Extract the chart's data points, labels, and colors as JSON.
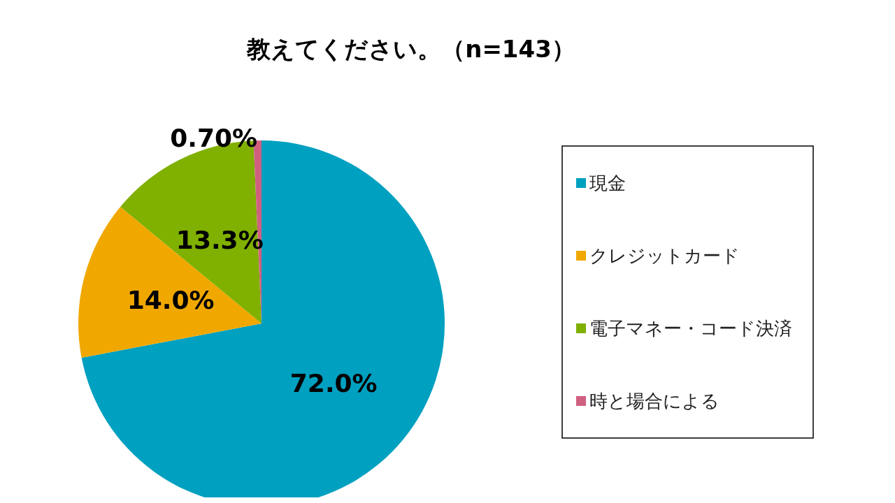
{
  "chart_data": {
    "type": "pie",
    "title": "教えてください。（n=143）",
    "categories": [
      "現金",
      "クレジットカード",
      "電子マネー・コード決済",
      "時と場合による"
    ],
    "values": [
      72.0,
      14.0,
      13.3,
      0.7
    ],
    "colors": [
      "#00a0c0",
      "#f0a800",
      "#80b000",
      "#d06080"
    ],
    "value_labels": [
      "72.0%",
      "14.0%",
      "13.3%",
      "0.70%"
    ],
    "legend": "right"
  }
}
